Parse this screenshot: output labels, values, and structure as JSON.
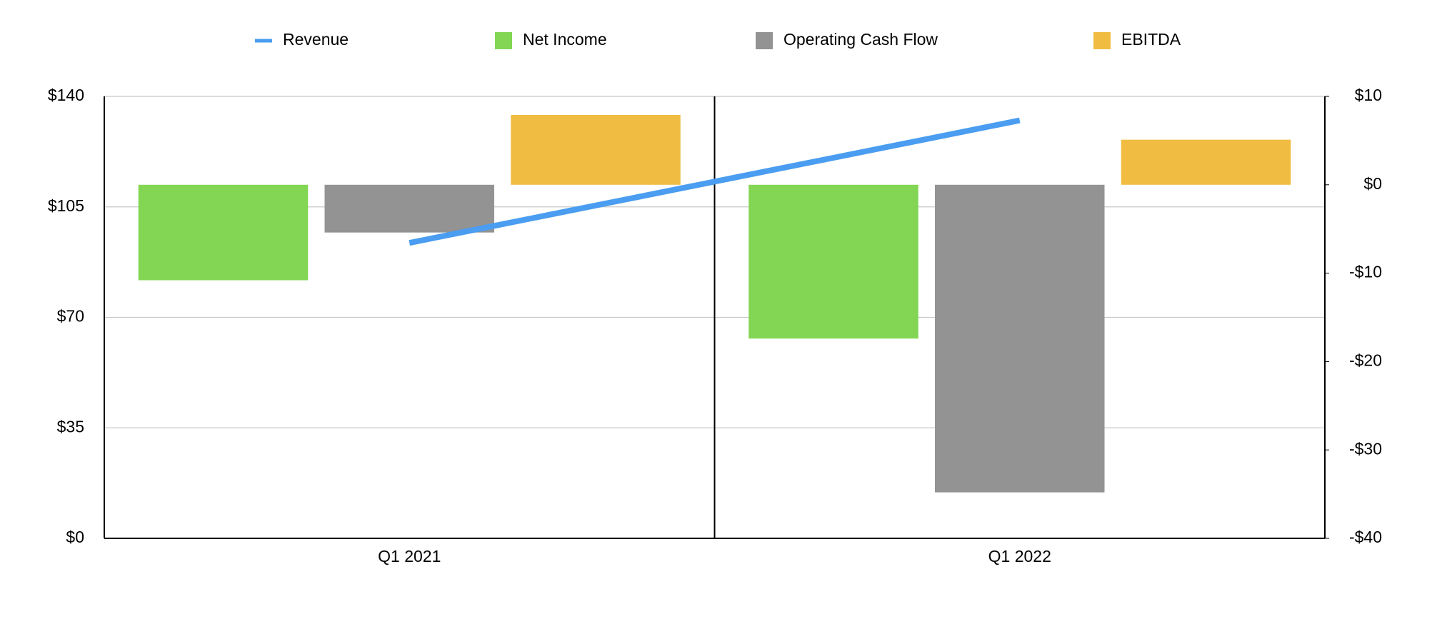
{
  "chart_data": {
    "type": "bar",
    "categories": [
      "Q1 2021",
      "Q1 2022"
    ],
    "series": [
      {
        "name": "Revenue",
        "type": "line",
        "axis": "y",
        "color": "#4a9df0",
        "values": [
          93.6,
          132.4
        ]
      },
      {
        "name": "Net Income",
        "axis": "y2",
        "color": "#82d653",
        "values": [
          -10.8,
          -17.4
        ]
      },
      {
        "name": "Operating Cash Flow",
        "axis": "y2",
        "color": "#939393",
        "values": [
          -5.4,
          -34.8
        ]
      },
      {
        "name": "EBITDA",
        "axis": "y2",
        "color": "#f0bd42",
        "values": [
          7.9,
          5.1
        ]
      }
    ],
    "ylim": [
      0,
      140
    ],
    "yticks": [
      {
        "value": 0,
        "label": "$0"
      },
      {
        "value": 35,
        "label": "$35"
      },
      {
        "value": 70,
        "label": "$70"
      },
      {
        "value": 105,
        "label": "$105"
      },
      {
        "value": 140,
        "label": "$140"
      }
    ],
    "y2lim": [
      -40,
      10
    ],
    "y2ticks": [
      {
        "value": -40,
        "label": "-$40"
      },
      {
        "value": -30,
        "label": "-$30"
      },
      {
        "value": -20,
        "label": "-$20"
      },
      {
        "value": -10,
        "label": "-$10"
      },
      {
        "value": 0,
        "label": "$0"
      },
      {
        "value": 10,
        "label": "$10"
      }
    ],
    "grid": true,
    "legend": "top"
  }
}
